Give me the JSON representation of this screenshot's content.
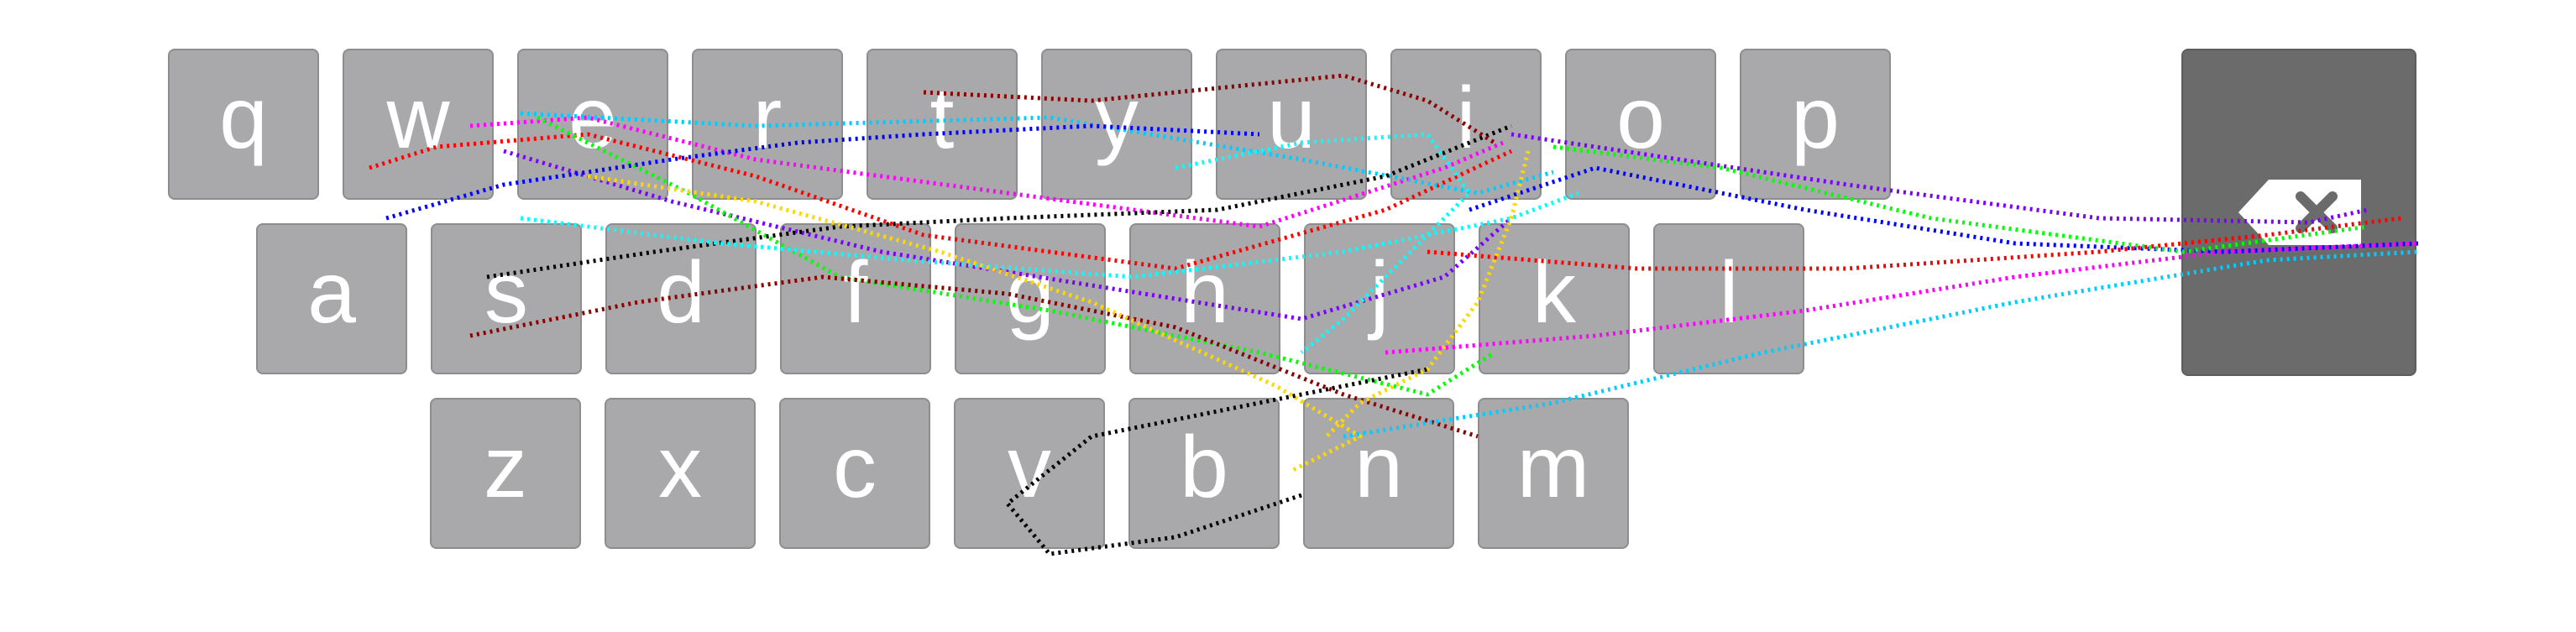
{
  "keyboard": {
    "rows": [
      [
        "q",
        "w",
        "e",
        "r",
        "t",
        "y",
        "u",
        "i",
        "o",
        "p"
      ],
      [
        "a",
        "s",
        "d",
        "f",
        "g",
        "h",
        "j",
        "k",
        "l"
      ],
      [
        "z",
        "x",
        "c",
        "v",
        "b",
        "n",
        "m"
      ]
    ],
    "backspace_icon": "backspace-icon"
  },
  "colors": {
    "key_fill": "#a9a9ab",
    "key_text": "#ffffff",
    "backspace_fill": "#6b6b6b",
    "trace_colors": [
      "#ff0000",
      "#ff00ff",
      "#00ccff",
      "#7a00ff",
      "#00ff00",
      "#000000",
      "#8b0000",
      "#00ffff",
      "#ffd700",
      "#0000ff"
    ]
  }
}
